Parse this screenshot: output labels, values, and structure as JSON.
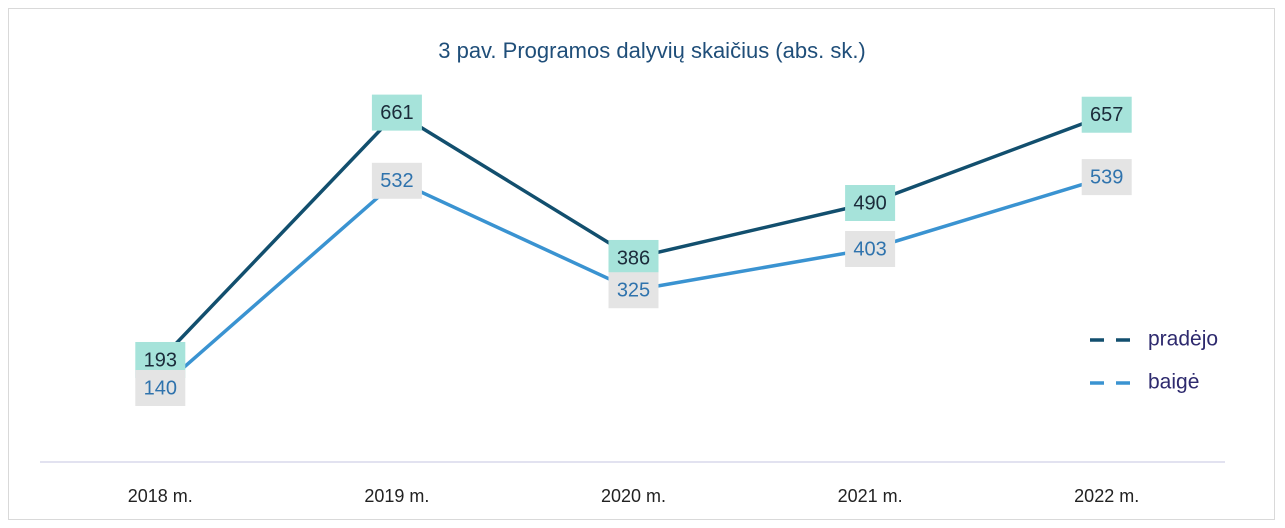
{
  "chart_data": {
    "type": "line",
    "title": "3 pav. Programos dalyvių skaičius (abs. sk.)",
    "categories": [
      "2018 m.",
      "2019 m.",
      "2020 m.",
      "2021 m.",
      "2022 m."
    ],
    "series": [
      {
        "name": "pradėjo",
        "color": "#124f6e",
        "values": [
          193,
          661,
          386,
          490,
          657
        ]
      },
      {
        "name": "baigė",
        "color": "#3a93d1",
        "values": [
          140,
          532,
          325,
          403,
          539
        ]
      }
    ],
    "ylim": [
      0,
      700
    ],
    "legend": "right"
  }
}
